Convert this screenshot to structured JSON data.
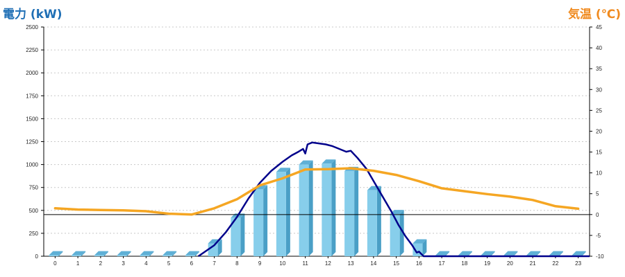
{
  "chart_data": {
    "type": "bar",
    "left_axis_title": "電力 (kW)",
    "right_axis_title": "気温 (℃)",
    "categories": [
      "0",
      "1",
      "2",
      "3",
      "4",
      "5",
      "6",
      "7",
      "8",
      "9",
      "10",
      "11",
      "12",
      "13",
      "14",
      "15",
      "16",
      "17",
      "18",
      "19",
      "20",
      "21",
      "22",
      "23"
    ],
    "ylim_left": [
      0,
      2500
    ],
    "yticks_left": [
      0,
      250,
      500,
      750,
      1000,
      1250,
      1500,
      1750,
      2000,
      2250,
      2500
    ],
    "ylim_right": [
      -10,
      45
    ],
    "yticks_right": [
      -10,
      -5,
      0,
      5,
      10,
      15,
      20,
      25,
      30,
      35,
      40,
      45
    ],
    "grid": "horizontal dotted",
    "series": [
      {
        "kind": "bar",
        "axis": "left",
        "color": "#87ceeb",
        "side_color": "#4a9fc6",
        "top_color": "#5fb0d6",
        "values": [
          10,
          10,
          10,
          10,
          10,
          10,
          10,
          140,
          420,
          730,
          920,
          1000,
          1010,
          930,
          720,
          460,
          140,
          10,
          10,
          10,
          10,
          10,
          10,
          10
        ]
      },
      {
        "kind": "line",
        "axis": "left",
        "color": "#00008b",
        "points": [
          [
            6.3,
            0
          ],
          [
            7.0,
            120
          ],
          [
            7.5,
            260
          ],
          [
            8.0,
            430
          ],
          [
            8.5,
            630
          ],
          [
            9.0,
            800
          ],
          [
            9.5,
            930
          ],
          [
            10.0,
            1030
          ],
          [
            10.4,
            1100
          ],
          [
            10.7,
            1140
          ],
          [
            10.9,
            1170
          ],
          [
            11.0,
            1120
          ],
          [
            11.1,
            1220
          ],
          [
            11.3,
            1240
          ],
          [
            11.6,
            1230
          ],
          [
            11.9,
            1220
          ],
          [
            12.2,
            1200
          ],
          [
            12.5,
            1170
          ],
          [
            12.8,
            1140
          ],
          [
            13.0,
            1150
          ],
          [
            13.3,
            1070
          ],
          [
            13.7,
            950
          ],
          [
            14.0,
            820
          ],
          [
            14.4,
            650
          ],
          [
            14.8,
            480
          ],
          [
            15.1,
            340
          ],
          [
            15.4,
            220
          ],
          [
            15.7,
            120
          ],
          [
            15.9,
            40
          ],
          [
            16.0,
            50
          ],
          [
            16.2,
            0
          ],
          [
            16.5,
            0
          ],
          [
            23.5,
            0
          ]
        ]
      },
      {
        "kind": "line",
        "axis": "right",
        "color": "#f5a623",
        "x": [
          0,
          1,
          2,
          3,
          4,
          5,
          6,
          7,
          8,
          9,
          10,
          11,
          12,
          13,
          14,
          15,
          16,
          17,
          18,
          19,
          20,
          21,
          22,
          23
        ],
        "values": [
          1.5,
          1.2,
          1.1,
          1.0,
          0.8,
          0.2,
          0.0,
          1.5,
          3.7,
          7.0,
          8.7,
          10.8,
          10.9,
          11.1,
          10.5,
          9.5,
          8.0,
          6.3,
          5.6,
          4.9,
          4.3,
          3.5,
          2.0,
          1.4
        ]
      }
    ],
    "reference_line": {
      "axis": "right",
      "value": 0,
      "color": "#000000"
    }
  }
}
